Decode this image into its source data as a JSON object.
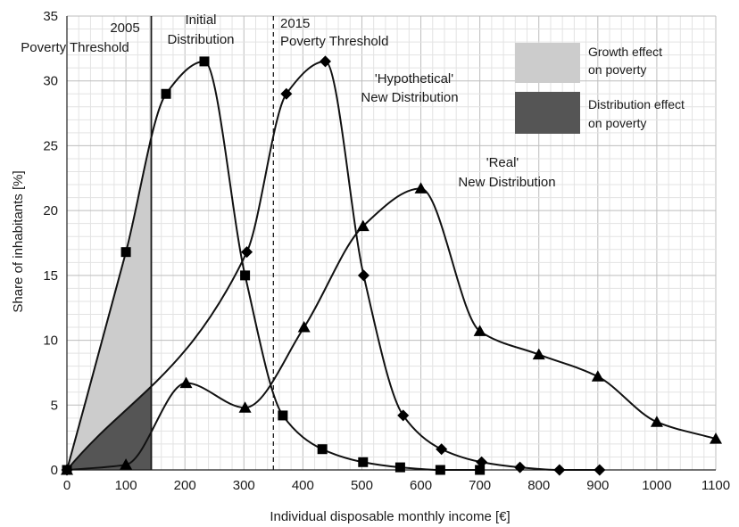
{
  "chart_data": {
    "type": "line",
    "xlabel": "Individual  disposable monthly  income [€]",
    "ylabel": "Share of inhabitants [%]",
    "xlim": [
      0,
      1100
    ],
    "ylim": [
      0,
      35
    ],
    "x_ticks": [
      "0",
      "100",
      "200",
      "300",
      "400",
      "500",
      "600",
      "700",
      "800",
      "900",
      "1000",
      "1100"
    ],
    "y_ticks": [
      "0",
      "5",
      "10",
      "15",
      "20",
      "25",
      "30",
      "35"
    ],
    "grid": true,
    "series": [
      {
        "name": "Initial Distribution",
        "marker": "square",
        "x": [
          0,
          100,
          168,
          233,
          302,
          366,
          433,
          502,
          565,
          633,
          700
        ],
        "y": [
          0,
          16.8,
          29,
          31.5,
          15,
          4.2,
          1.6,
          0.6,
          0.2,
          0,
          0
        ]
      },
      {
        "name": "'Hypothetical' New Distribution",
        "marker": "diamond",
        "x": [
          0,
          305,
          372,
          438,
          503,
          570,
          635,
          703,
          768,
          835,
          903
        ],
        "y": [
          0,
          16.8,
          29,
          31.5,
          15,
          4.2,
          1.6,
          0.6,
          0.2,
          0,
          0
        ]
      },
      {
        "name": "'Real' New Distribution",
        "marker": "triangle",
        "x": [
          0,
          100,
          202,
          302,
          402,
          502,
          600,
          700,
          800,
          900,
          1000,
          1100
        ],
        "y": [
          0,
          0.4,
          6.7,
          4.8,
          11,
          18.8,
          21.7,
          10.7,
          8.9,
          7.2,
          3.7,
          2.4
        ]
      }
    ],
    "shaded_areas": [
      {
        "label": "Growth effect on poverty",
        "color": "#cccccc"
      },
      {
        "label": "Distribution effect on poverty",
        "color": "#555555"
      }
    ],
    "thresholds": [
      {
        "label_line1": "2005",
        "label_line2": "Poverty  Threshold",
        "x": 143,
        "style": "solid"
      },
      {
        "label_line1": "2015",
        "label_line2": "Poverty  Threshold",
        "x": 350,
        "style": "dashed"
      }
    ],
    "annotations": {
      "initial_1": "Initial",
      "initial_2": "Distribution",
      "hyp_1": "'Hypothetical'",
      "hyp_2": "New Distribution",
      "real_1": "'Real'",
      "real_2": "New Distribution"
    },
    "legend": {
      "placement": "top-right",
      "growth_1": "Growth effect",
      "growth_2": "on poverty",
      "dist_1": "Distribution effect",
      "dist_2": "on poverty"
    }
  }
}
